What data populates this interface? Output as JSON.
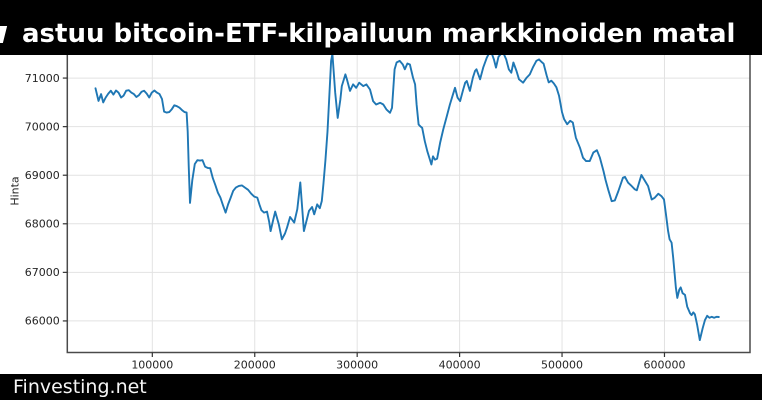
{
  "banner_top": {
    "title": "astuu bitcoin-ETF-kilpailuun markkinoiden matal"
  },
  "banner_bottom": {
    "watermark": "Finvesting.net"
  },
  "colors": {
    "banner_bg": "#000000",
    "banner_text": "#ffffff",
    "line": "#1f77b4",
    "grid": "#e2e2e2",
    "spine": "#4a4a4a",
    "tick": "#333333",
    "tick_label": "#262626",
    "plot_bg": "#ffffff"
  },
  "chart_data": {
    "type": "line",
    "title": "",
    "xlabel": "",
    "ylabel": "Hinta",
    "legend": null,
    "grid": true,
    "xlim": [
      17000,
      683500
    ],
    "ylim": [
      65350,
      71475
    ],
    "x_ticks": [
      100000,
      200000,
      300000,
      400000,
      500000,
      600000
    ],
    "y_ticks": [
      66000,
      67000,
      68000,
      69000,
      70000,
      71000
    ],
    "series_color": "#1f77b4",
    "points": [
      [
        44500,
        70790
      ],
      [
        47500,
        70530
      ],
      [
        50000,
        70670
      ],
      [
        52000,
        70500
      ],
      [
        54500,
        70600
      ],
      [
        57000,
        70680
      ],
      [
        59500,
        70740
      ],
      [
        62000,
        70660
      ],
      [
        64500,
        70745
      ],
      [
        67000,
        70700
      ],
      [
        69500,
        70600
      ],
      [
        72000,
        70640
      ],
      [
        74500,
        70740
      ],
      [
        77000,
        70750
      ],
      [
        79500,
        70700
      ],
      [
        82000,
        70670
      ],
      [
        84500,
        70610
      ],
      [
        87000,
        70650
      ],
      [
        89500,
        70720
      ],
      [
        92000,
        70740
      ],
      [
        94500,
        70680
      ],
      [
        97000,
        70600
      ],
      [
        99500,
        70700
      ],
      [
        102000,
        70745
      ],
      [
        104500,
        70700
      ],
      [
        107000,
        70670
      ],
      [
        109500,
        70570
      ],
      [
        111500,
        70310
      ],
      [
        114000,
        70290
      ],
      [
        116500,
        70300
      ],
      [
        119000,
        70360
      ],
      [
        121500,
        70440
      ],
      [
        124000,
        70420
      ],
      [
        126500,
        70390
      ],
      [
        129000,
        70340
      ],
      [
        131500,
        70300
      ],
      [
        133500,
        70290
      ],
      [
        134500,
        69900
      ],
      [
        135500,
        69200
      ],
      [
        136800,
        68430
      ],
      [
        139000,
        68900
      ],
      [
        141500,
        69230
      ],
      [
        144000,
        69310
      ],
      [
        146500,
        69300
      ],
      [
        149000,
        69310
      ],
      [
        151500,
        69175
      ],
      [
        154000,
        69150
      ],
      [
        156500,
        69145
      ],
      [
        159000,
        68940
      ],
      [
        161500,
        68800
      ],
      [
        164000,
        68640
      ],
      [
        166500,
        68540
      ],
      [
        169000,
        68380
      ],
      [
        171500,
        68230
      ],
      [
        174000,
        68400
      ],
      [
        176500,
        68540
      ],
      [
        179000,
        68680
      ],
      [
        181500,
        68745
      ],
      [
        184500,
        68780
      ],
      [
        187500,
        68790
      ],
      [
        190500,
        68745
      ],
      [
        193500,
        68700
      ],
      [
        196500,
        68620
      ],
      [
        199500,
        68560
      ],
      [
        202500,
        68540
      ],
      [
        204500,
        68400
      ],
      [
        206500,
        68280
      ],
      [
        209000,
        68230
      ],
      [
        212000,
        68250
      ],
      [
        214000,
        68050
      ],
      [
        215500,
        67850
      ],
      [
        218000,
        68080
      ],
      [
        220000,
        68250
      ],
      [
        223500,
        67990
      ],
      [
        226500,
        67680
      ],
      [
        229500,
        67800
      ],
      [
        231500,
        67920
      ],
      [
        234500,
        68140
      ],
      [
        238500,
        68025
      ],
      [
        241500,
        68300
      ],
      [
        244500,
        68850
      ],
      [
        248000,
        67850
      ],
      [
        251000,
        68100
      ],
      [
        253000,
        68265
      ],
      [
        256000,
        68345
      ],
      [
        258000,
        68195
      ],
      [
        261000,
        68400
      ],
      [
        263500,
        68320
      ],
      [
        265500,
        68470
      ],
      [
        267000,
        68815
      ],
      [
        269000,
        69300
      ],
      [
        271000,
        69900
      ],
      [
        273000,
        70700
      ],
      [
        274500,
        71350
      ],
      [
        275800,
        71500
      ],
      [
        278500,
        70700
      ],
      [
        281000,
        70180
      ],
      [
        283500,
        70550
      ],
      [
        285000,
        70835
      ],
      [
        288500,
        71075
      ],
      [
        290000,
        70975
      ],
      [
        293000,
        70735
      ],
      [
        296000,
        70870
      ],
      [
        299000,
        70800
      ],
      [
        302000,
        70905
      ],
      [
        306000,
        70835
      ],
      [
        309000,
        70870
      ],
      [
        312500,
        70765
      ],
      [
        315500,
        70525
      ],
      [
        318500,
        70455
      ],
      [
        322500,
        70490
      ],
      [
        325500,
        70455
      ],
      [
        328500,
        70355
      ],
      [
        332000,
        70285
      ],
      [
        334000,
        70385
      ],
      [
        336500,
        71180
      ],
      [
        338500,
        71320
      ],
      [
        341500,
        71355
      ],
      [
        344500,
        71280
      ],
      [
        346500,
        71180
      ],
      [
        349000,
        71300
      ],
      [
        351500,
        71280
      ],
      [
        354500,
        71010
      ],
      [
        356500,
        70870
      ],
      [
        358000,
        70455
      ],
      [
        360000,
        70045
      ],
      [
        361500,
        70010
      ],
      [
        363500,
        69975
      ],
      [
        366000,
        69700
      ],
      [
        368500,
        69495
      ],
      [
        370500,
        69355
      ],
      [
        372500,
        69220
      ],
      [
        374000,
        69390
      ],
      [
        376000,
        69320
      ],
      [
        378000,
        69340
      ],
      [
        381000,
        69665
      ],
      [
        384000,
        69940
      ],
      [
        387500,
        70215
      ],
      [
        390500,
        70455
      ],
      [
        393500,
        70665
      ],
      [
        395500,
        70800
      ],
      [
        398000,
        70595
      ],
      [
        400500,
        70525
      ],
      [
        403500,
        70765
      ],
      [
        405500,
        70905
      ],
      [
        407000,
        70940
      ],
      [
        410000,
        70735
      ],
      [
        413000,
        71010
      ],
      [
        415000,
        71145
      ],
      [
        416500,
        71180
      ],
      [
        420000,
        70975
      ],
      [
        423000,
        71215
      ],
      [
        426500,
        71420
      ],
      [
        428500,
        71500
      ],
      [
        431500,
        71500
      ],
      [
        433500,
        71385
      ],
      [
        435500,
        71215
      ],
      [
        438000,
        71440
      ],
      [
        440500,
        71500
      ],
      [
        443000,
        71500
      ],
      [
        445500,
        71385
      ],
      [
        448000,
        71180
      ],
      [
        450500,
        71110
      ],
      [
        452500,
        71320
      ],
      [
        455500,
        71145
      ],
      [
        458000,
        70975
      ],
      [
        462000,
        70905
      ],
      [
        465500,
        71010
      ],
      [
        468500,
        71075
      ],
      [
        471500,
        71215
      ],
      [
        475000,
        71355
      ],
      [
        477500,
        71385
      ],
      [
        480000,
        71330
      ],
      [
        482000,
        71295
      ],
      [
        485000,
        71050
      ],
      [
        487000,
        70910
      ],
      [
        489500,
        70945
      ],
      [
        492000,
        70890
      ],
      [
        494500,
        70810
      ],
      [
        497000,
        70640
      ],
      [
        500000,
        70300
      ],
      [
        502000,
        70155
      ],
      [
        505000,
        70050
      ],
      [
        508000,
        70120
      ],
      [
        510500,
        70085
      ],
      [
        513500,
        69770
      ],
      [
        517500,
        69565
      ],
      [
        520500,
        69360
      ],
      [
        523500,
        69290
      ],
      [
        527000,
        69290
      ],
      [
        530500,
        69465
      ],
      [
        534000,
        69515
      ],
      [
        537000,
        69360
      ],
      [
        540500,
        69085
      ],
      [
        542500,
        68900
      ],
      [
        545000,
        68710
      ],
      [
        548500,
        68465
      ],
      [
        551500,
        68480
      ],
      [
        555000,
        68675
      ],
      [
        559500,
        68950
      ],
      [
        561500,
        68965
      ],
      [
        564500,
        68845
      ],
      [
        568000,
        68775
      ],
      [
        571000,
        68710
      ],
      [
        573000,
        68690
      ],
      [
        577500,
        69005
      ],
      [
        581000,
        68880
      ],
      [
        584000,
        68775
      ],
      [
        587500,
        68500
      ],
      [
        590500,
        68535
      ],
      [
        594000,
        68620
      ],
      [
        597000,
        68570
      ],
      [
        599500,
        68500
      ],
      [
        601500,
        68190
      ],
      [
        603500,
        67850
      ],
      [
        605000,
        67680
      ],
      [
        607000,
        67610
      ],
      [
        608500,
        67300
      ],
      [
        610000,
        66955
      ],
      [
        611200,
        66680
      ],
      [
        612500,
        66475
      ],
      [
        614500,
        66645
      ],
      [
        615800,
        66690
      ],
      [
        617700,
        66570
      ],
      [
        620000,
        66535
      ],
      [
        622200,
        66295
      ],
      [
        625000,
        66155
      ],
      [
        626500,
        66120
      ],
      [
        628100,
        66175
      ],
      [
        629700,
        66135
      ],
      [
        632000,
        65915
      ],
      [
        634500,
        65605
      ],
      [
        637200,
        65845
      ],
      [
        639500,
        66015
      ],
      [
        641700,
        66105
      ],
      [
        644000,
        66065
      ],
      [
        646000,
        66085
      ],
      [
        648500,
        66065
      ],
      [
        651000,
        66085
      ],
      [
        653000,
        66080
      ]
    ]
  }
}
